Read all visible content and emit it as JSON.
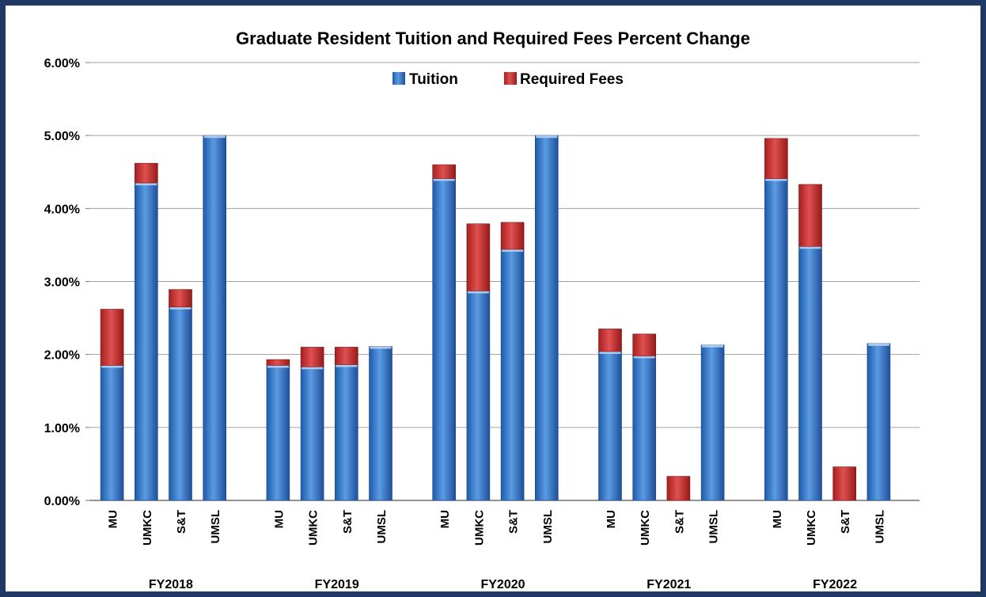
{
  "chart_data": {
    "type": "bar",
    "stacked": true,
    "title": "Graduate Resident Tuition and Required Fees Percent Change",
    "ylim": [
      0,
      0.06
    ],
    "yticks": [
      "0.00%",
      "1.00%",
      "2.00%",
      "3.00%",
      "4.00%",
      "5.00%",
      "6.00%"
    ],
    "groups": [
      "FY2018",
      "FY2019",
      "FY2020",
      "FY2021",
      "FY2022"
    ],
    "categories": [
      "MU",
      "UMKC",
      "S&T",
      "UMSL"
    ],
    "legend_position": "top-center",
    "grid": true,
    "series": [
      {
        "name": "Tuition",
        "color": "#3d7fcf",
        "values": [
          [
            0.0185,
            0.0435,
            0.0265,
            0.05
          ],
          [
            0.0185,
            0.0183,
            0.0186,
            0.0211
          ],
          [
            0.0441,
            0.0287,
            0.0344,
            0.05
          ],
          [
            0.0204,
            0.0198,
            0.0,
            0.0213
          ],
          [
            0.0441,
            0.0348,
            0.0,
            0.0215
          ]
        ]
      },
      {
        "name": "Required Fees",
        "color": "#c83232",
        "values": [
          [
            0.0077,
            0.0027,
            0.0024,
            0.0
          ],
          [
            0.0008,
            0.0027,
            0.0024,
            0.0
          ],
          [
            0.0019,
            0.0092,
            0.0037,
            0.0
          ],
          [
            0.0031,
            0.003,
            0.0033,
            0.0
          ],
          [
            0.0055,
            0.0085,
            0.0046,
            0.0
          ]
        ]
      }
    ]
  }
}
